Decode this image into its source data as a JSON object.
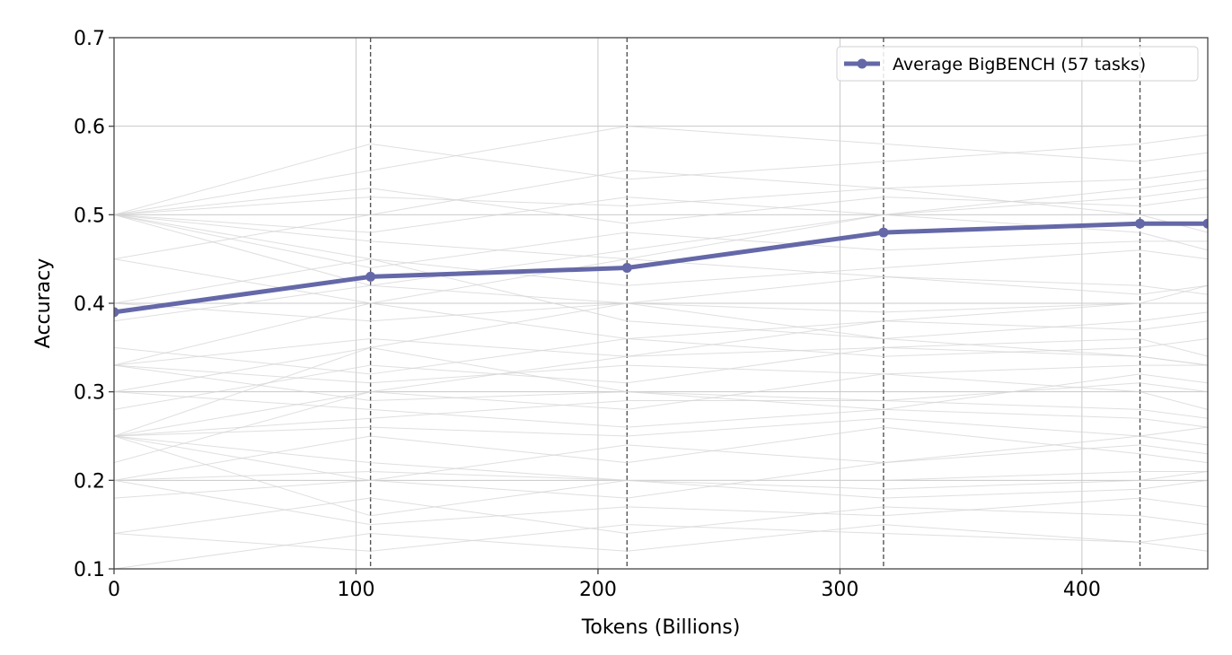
{
  "chart_data": {
    "type": "line",
    "title": "",
    "xlabel": "Tokens (Billions)",
    "ylabel": "Accuracy",
    "xlim": [
      0,
      452
    ],
    "ylim": [
      0.1,
      0.7
    ],
    "xticks": [
      0,
      100,
      200,
      300,
      400
    ],
    "yticks": [
      0.1,
      0.2,
      0.3,
      0.4,
      0.5,
      0.6,
      0.7
    ],
    "grid": true,
    "legend_position": "top-right",
    "checkpoint_markers_x": [
      106,
      212,
      318,
      424
    ],
    "series": [
      {
        "name": "Average BigBENCH (57 tasks)",
        "color": "#6468a8",
        "marker": "circle",
        "x": [
          0,
          106,
          212,
          318,
          424,
          452
        ],
        "y": [
          0.39,
          0.43,
          0.44,
          0.48,
          0.49,
          0.49
        ]
      }
    ],
    "background_series_color": "#d4d4d4",
    "background_series": [
      [
        0.5,
        0.52,
        0.51,
        0.53,
        0.54,
        0.55
      ],
      [
        0.5,
        0.47,
        0.45,
        0.43,
        0.42,
        0.41
      ],
      [
        0.5,
        0.5,
        0.5,
        0.5,
        0.5,
        0.5
      ],
      [
        0.5,
        0.55,
        0.6,
        0.58,
        0.56,
        0.57
      ],
      [
        0.5,
        0.45,
        0.38,
        0.36,
        0.34,
        0.33
      ],
      [
        0.5,
        0.53,
        0.49,
        0.52,
        0.51,
        0.52
      ],
      [
        0.5,
        0.48,
        0.52,
        0.5,
        0.53,
        0.54
      ],
      [
        0.5,
        0.42,
        0.46,
        0.5,
        0.48,
        0.46
      ],
      [
        0.25,
        0.26,
        0.25,
        0.27,
        0.25,
        0.26
      ],
      [
        0.25,
        0.3,
        0.34,
        0.38,
        0.4,
        0.42
      ],
      [
        0.25,
        0.22,
        0.2,
        0.19,
        0.2,
        0.21
      ],
      [
        0.25,
        0.35,
        0.3,
        0.28,
        0.32,
        0.31
      ],
      [
        0.25,
        0.27,
        0.29,
        0.29,
        0.28,
        0.27
      ],
      [
        0.25,
        0.2,
        0.18,
        0.22,
        0.24,
        0.23
      ],
      [
        0.33,
        0.36,
        0.34,
        0.35,
        0.36,
        0.34
      ],
      [
        0.33,
        0.31,
        0.33,
        0.32,
        0.33,
        0.33
      ],
      [
        0.33,
        0.4,
        0.45,
        0.5,
        0.52,
        0.53
      ],
      [
        0.33,
        0.29,
        0.3,
        0.29,
        0.31,
        0.3
      ],
      [
        0.2,
        0.21,
        0.2,
        0.2,
        0.21,
        0.21
      ],
      [
        0.2,
        0.25,
        0.22,
        0.26,
        0.23,
        0.22
      ],
      [
        0.2,
        0.15,
        0.17,
        0.16,
        0.18,
        0.17
      ],
      [
        0.14,
        0.18,
        0.14,
        0.17,
        0.16,
        0.15
      ],
      [
        0.14,
        0.12,
        0.15,
        0.14,
        0.13,
        0.14
      ],
      [
        0.1,
        0.14,
        0.12,
        0.15,
        0.13,
        0.12
      ],
      [
        0.4,
        0.38,
        0.4,
        0.39,
        0.4,
        0.4
      ],
      [
        0.4,
        0.45,
        0.42,
        0.44,
        0.46,
        0.45
      ],
      [
        0.45,
        0.5,
        0.55,
        0.53,
        0.5,
        0.48
      ],
      [
        0.45,
        0.4,
        0.36,
        0.38,
        0.37,
        0.38
      ],
      [
        0.3,
        0.35,
        0.4,
        0.36,
        0.38,
        0.39
      ],
      [
        0.3,
        0.28,
        0.26,
        0.28,
        0.27,
        0.26
      ],
      [
        0.22,
        0.3,
        0.28,
        0.32,
        0.3,
        0.28
      ],
      [
        0.18,
        0.2,
        0.24,
        0.22,
        0.25,
        0.24
      ],
      [
        0.35,
        0.32,
        0.36,
        0.34,
        0.35,
        0.36
      ],
      [
        0.28,
        0.33,
        0.31,
        0.35,
        0.34,
        0.33
      ],
      [
        0.5,
        0.58,
        0.54,
        0.56,
        0.58,
        0.59
      ],
      [
        0.5,
        0.44,
        0.48,
        0.46,
        0.47,
        0.47
      ],
      [
        0.25,
        0.16,
        0.2,
        0.18,
        0.19,
        0.2
      ],
      [
        0.38,
        0.42,
        0.4,
        0.43,
        0.41,
        0.42
      ]
    ]
  }
}
